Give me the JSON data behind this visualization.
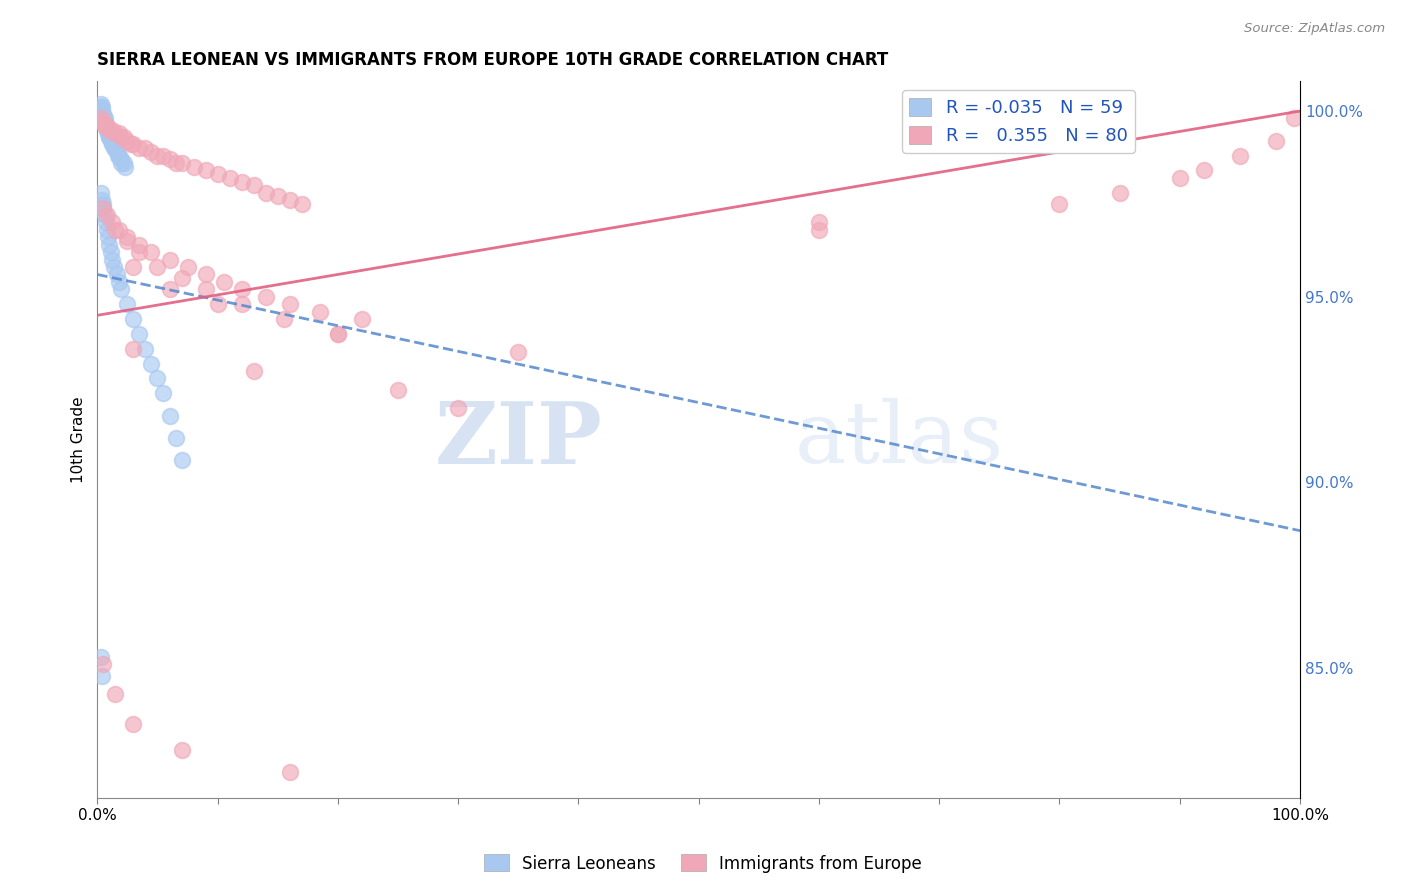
{
  "title": "SIERRA LEONEAN VS IMMIGRANTS FROM EUROPE 10TH GRADE CORRELATION CHART",
  "source": "Source: ZipAtlas.com",
  "ylabel": "10th Grade",
  "right_ytick_labels": [
    "100.0%",
    "95.0%",
    "90.0%",
    "85.0%"
  ],
  "right_ytick_values": [
    1.0,
    0.95,
    0.9,
    0.85
  ],
  "legend_r_blue": "-0.035",
  "legend_n_blue": "59",
  "legend_r_pink": "0.355",
  "legend_n_pink": "80",
  "blue_color": "#a8c8f0",
  "pink_color": "#f0a8b8",
  "blue_line_color": "#5588cc",
  "pink_line_color": "#e06080",
  "watermark_zip": "ZIP",
  "watermark_atlas": "atlas",
  "blue_trend_x": [
    0.0,
    1.0
  ],
  "blue_trend_y": [
    0.956,
    0.887
  ],
  "pink_trend_x": [
    0.0,
    1.0
  ],
  "pink_trend_y": [
    0.945,
    1.0
  ],
  "xlim": [
    0.0,
    1.0
  ],
  "ylim": [
    0.815,
    1.008
  ],
  "blue_scatter_x": [
    0.003,
    0.003,
    0.004,
    0.004,
    0.004,
    0.005,
    0.005,
    0.005,
    0.006,
    0.006,
    0.006,
    0.007,
    0.007,
    0.008,
    0.008,
    0.009,
    0.009,
    0.01,
    0.01,
    0.011,
    0.012,
    0.012,
    0.013,
    0.014,
    0.015,
    0.016,
    0.017,
    0.018,
    0.02,
    0.02,
    0.022,
    0.023,
    0.003,
    0.004,
    0.005,
    0.005,
    0.006,
    0.007,
    0.008,
    0.009,
    0.01,
    0.011,
    0.012,
    0.014,
    0.016,
    0.018,
    0.02,
    0.025,
    0.03,
    0.035,
    0.04,
    0.045,
    0.05,
    0.055,
    0.06,
    0.065,
    0.07,
    0.003,
    0.004
  ],
  "blue_scatter_y": [
    1.002,
    1.001,
    1.001,
    1.0,
    1.0,
    0.999,
    0.999,
    0.998,
    0.998,
    0.997,
    0.997,
    0.996,
    0.996,
    0.995,
    0.995,
    0.994,
    0.994,
    0.993,
    0.993,
    0.992,
    0.992,
    0.991,
    0.991,
    0.99,
    0.99,
    0.989,
    0.988,
    0.988,
    0.987,
    0.986,
    0.986,
    0.985,
    0.978,
    0.976,
    0.975,
    0.974,
    0.972,
    0.97,
    0.968,
    0.966,
    0.964,
    0.962,
    0.96,
    0.958,
    0.956,
    0.954,
    0.952,
    0.948,
    0.944,
    0.94,
    0.936,
    0.932,
    0.928,
    0.924,
    0.918,
    0.912,
    0.906,
    0.853,
    0.848
  ],
  "pink_scatter_x": [
    0.003,
    0.004,
    0.005,
    0.006,
    0.008,
    0.01,
    0.012,
    0.015,
    0.018,
    0.02,
    0.022,
    0.025,
    0.028,
    0.03,
    0.035,
    0.04,
    0.045,
    0.05,
    0.055,
    0.06,
    0.065,
    0.07,
    0.08,
    0.09,
    0.1,
    0.11,
    0.12,
    0.13,
    0.14,
    0.15,
    0.16,
    0.17,
    0.005,
    0.008,
    0.012,
    0.018,
    0.025,
    0.035,
    0.045,
    0.06,
    0.075,
    0.09,
    0.105,
    0.12,
    0.14,
    0.16,
    0.185,
    0.22,
    0.015,
    0.025,
    0.035,
    0.05,
    0.07,
    0.09,
    0.12,
    0.155,
    0.2,
    0.03,
    0.06,
    0.1,
    0.2,
    0.35,
    0.6,
    0.8,
    0.85,
    0.9,
    0.92,
    0.95,
    0.98,
    0.995,
    0.03,
    0.13,
    0.25,
    0.3,
    0.6,
    0.005,
    0.015,
    0.03,
    0.07,
    0.16
  ],
  "pink_scatter_y": [
    0.998,
    0.997,
    0.997,
    0.996,
    0.996,
    0.995,
    0.995,
    0.994,
    0.994,
    0.993,
    0.993,
    0.992,
    0.991,
    0.991,
    0.99,
    0.99,
    0.989,
    0.988,
    0.988,
    0.987,
    0.986,
    0.986,
    0.985,
    0.984,
    0.983,
    0.982,
    0.981,
    0.98,
    0.978,
    0.977,
    0.976,
    0.975,
    0.974,
    0.972,
    0.97,
    0.968,
    0.966,
    0.964,
    0.962,
    0.96,
    0.958,
    0.956,
    0.954,
    0.952,
    0.95,
    0.948,
    0.946,
    0.944,
    0.968,
    0.965,
    0.962,
    0.958,
    0.955,
    0.952,
    0.948,
    0.944,
    0.94,
    0.958,
    0.952,
    0.948,
    0.94,
    0.935,
    0.968,
    0.975,
    0.978,
    0.982,
    0.984,
    0.988,
    0.992,
    0.998,
    0.936,
    0.93,
    0.925,
    0.92,
    0.97,
    0.851,
    0.843,
    0.835,
    0.828,
    0.822
  ]
}
